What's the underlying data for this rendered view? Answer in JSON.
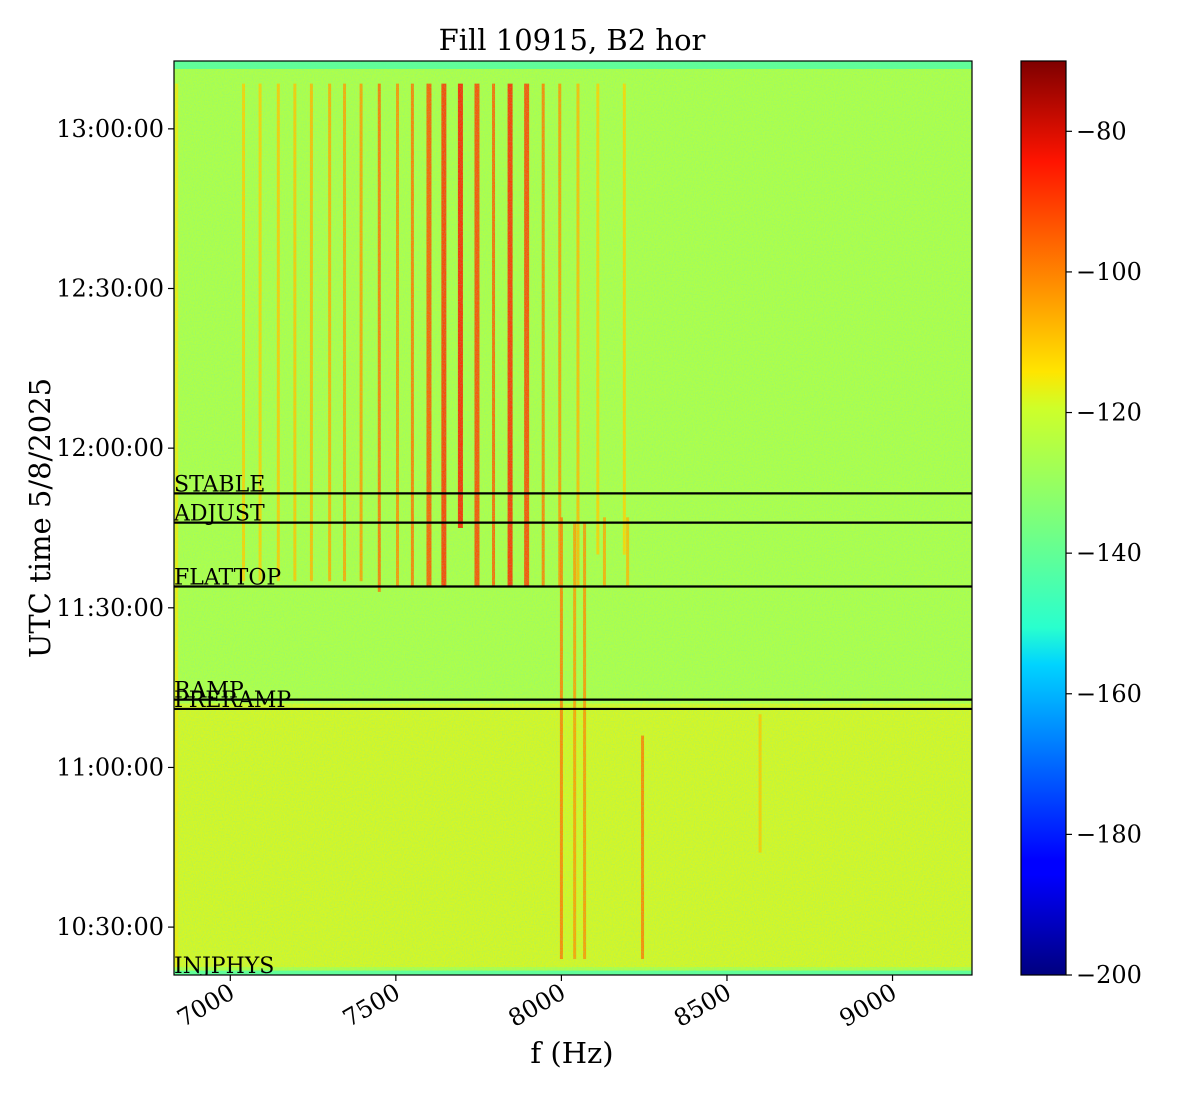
{
  "chart_data": {
    "type": "heatmap",
    "title": "Fill 10915, B2 hor",
    "xlabel": "f (Hz)",
    "ylabel": "UTC time 5/8/2025",
    "xlim": [
      6830,
      9240
    ],
    "ylim": [
      "10:21:00",
      "13:12:45"
    ],
    "x_ticks": [
      {
        "value": 7000,
        "label": "7000"
      },
      {
        "value": 7500,
        "label": "7500"
      },
      {
        "value": 8000,
        "label": "8000"
      },
      {
        "value": 8500,
        "label": "8500"
      },
      {
        "value": 9000,
        "label": "9000"
      }
    ],
    "y_ticks": [
      {
        "value": "10:30:00",
        "label": "10:30:00"
      },
      {
        "value": "11:00:00",
        "label": "11:00:00"
      },
      {
        "value": "11:30:00",
        "label": "11:30:00"
      },
      {
        "value": "12:00:00",
        "label": "12:00:00"
      },
      {
        "value": "12:30:00",
        "label": "12:30:00"
      },
      {
        "value": "13:00:00",
        "label": "13:00:00"
      }
    ],
    "phases": [
      {
        "label": "INJPHYS",
        "time": "10:21:00"
      },
      {
        "label": "PRERAMP",
        "time": "11:11:00"
      },
      {
        "label": "RAMP",
        "time": "11:12:45"
      },
      {
        "label": "FLATTOP",
        "time": "11:34:00"
      },
      {
        "label": "ADJUST",
        "time": "11:46:00"
      },
      {
        "label": "STABLE",
        "time": "11:51:30"
      }
    ],
    "colorbar": {
      "colormap": "jet",
      "range": [
        -200,
        -70
      ],
      "ticks": [
        {
          "value": -80,
          "label": "−80"
        },
        {
          "value": -100,
          "label": "−100"
        },
        {
          "value": -120,
          "label": "−120"
        },
        {
          "value": -140,
          "label": "−140"
        },
        {
          "value": -160,
          "label": "−160"
        },
        {
          "value": -180,
          "label": "−180"
        },
        {
          "value": -200,
          "label": "−200"
        }
      ]
    },
    "background_level": -125,
    "edge_level": -140,
    "edge_band_minutes": 1.5,
    "early_broadband": {
      "from": "10:22:30",
      "to": "11:12:00",
      "level": -117
    },
    "lines": [
      {
        "f": 6838,
        "from": "10:22:30",
        "to": "13:08:30",
        "level": -115
      },
      {
        "f": 7040,
        "from": "11:35:00",
        "to": "13:08:30",
        "level": -111
      },
      {
        "f": 7090,
        "from": "11:35:00",
        "to": "13:08:30",
        "level": -111
      },
      {
        "f": 7145,
        "from": "11:35:00",
        "to": "13:08:30",
        "level": -110
      },
      {
        "f": 7195,
        "from": "11:35:00",
        "to": "13:08:30",
        "level": -110
      },
      {
        "f": 7245,
        "from": "11:35:00",
        "to": "13:08:30",
        "level": -108
      },
      {
        "f": 7300,
        "from": "11:35:00",
        "to": "13:08:30",
        "level": -106
      },
      {
        "f": 7345,
        "from": "11:35:00",
        "to": "13:08:30",
        "level": -105
      },
      {
        "f": 7395,
        "from": "11:35:00",
        "to": "13:08:30",
        "level": -104
      },
      {
        "f": 7450,
        "from": "11:33:00",
        "to": "13:08:30",
        "level": -98
      },
      {
        "f": 7505,
        "from": "11:34:00",
        "to": "13:08:30",
        "level": -102
      },
      {
        "f": 7550,
        "from": "11:34:00",
        "to": "13:08:30",
        "level": -99
      },
      {
        "f": 7600,
        "from": "11:34:00",
        "to": "13:08:30",
        "level": -94
      },
      {
        "f": 7645,
        "from": "11:34:00",
        "to": "13:08:30",
        "level": -90
      },
      {
        "f": 7695,
        "from": "11:45:00",
        "to": "13:08:30",
        "level": -86
      },
      {
        "f": 7745,
        "from": "11:34:00",
        "to": "13:08:30",
        "level": -92
      },
      {
        "f": 7795,
        "from": "11:34:00",
        "to": "13:08:30",
        "level": -96
      },
      {
        "f": 7845,
        "from": "11:34:00",
        "to": "13:08:30",
        "level": -88
      },
      {
        "f": 7895,
        "from": "11:34:00",
        "to": "13:08:30",
        "level": -92
      },
      {
        "f": 7945,
        "from": "11:34:00",
        "to": "13:08:30",
        "level": -100
      },
      {
        "f": 7995,
        "from": "11:34:00",
        "to": "13:08:30",
        "level": -103
      },
      {
        "f": 8050,
        "from": "11:34:00",
        "to": "13:08:30",
        "level": -108
      },
      {
        "f": 8110,
        "from": "11:40:00",
        "to": "13:08:30",
        "level": -111
      },
      {
        "f": 8190,
        "from": "11:40:00",
        "to": "13:08:30",
        "level": -112
      },
      {
        "f": 8000,
        "from": "10:24:00",
        "to": "11:47:00",
        "level": -100
      },
      {
        "f": 8040,
        "from": "10:24:00",
        "to": "11:46:00",
        "level": -104
      },
      {
        "f": 8070,
        "from": "10:24:00",
        "to": "11:46:00",
        "level": -103
      },
      {
        "f": 8130,
        "from": "11:34:00",
        "to": "11:47:00",
        "level": -106
      },
      {
        "f": 8200,
        "from": "11:34:00",
        "to": "11:47:00",
        "level": -108
      },
      {
        "f": 8245,
        "from": "10:24:00",
        "to": "11:06:00",
        "level": -100
      },
      {
        "f": 8600,
        "from": "10:44:00",
        "to": "11:10:00",
        "level": -110
      }
    ]
  }
}
